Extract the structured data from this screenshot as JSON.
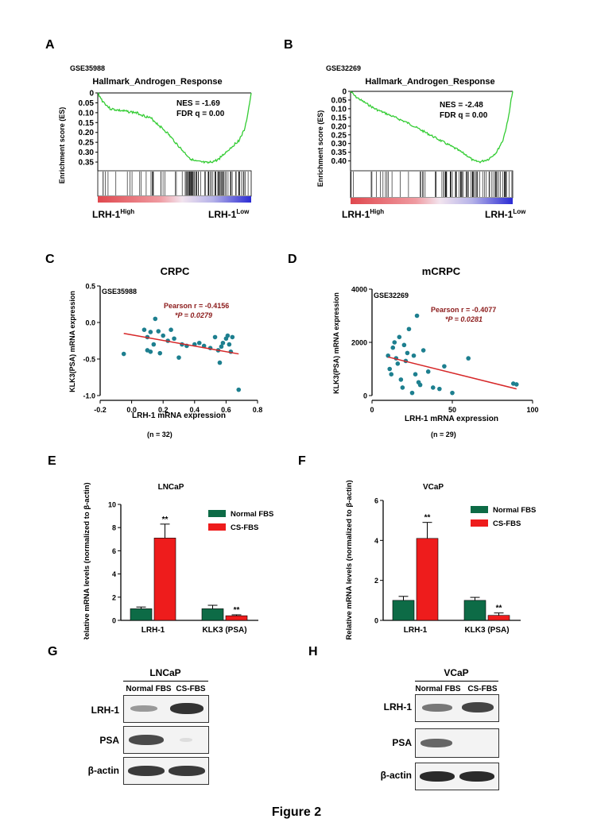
{
  "figure": {
    "title": "Figure 2"
  },
  "panels": {
    "A": {
      "label": "A",
      "dataset": "GSE35988",
      "title": "Hallmark_Androgen_Response",
      "ylabel": "Enrichment score (ES)",
      "nes": "NES = -1.69",
      "fdr": "FDR q = 0.00",
      "yticks": [
        "0",
        "0.05",
        "0.10",
        "0.15",
        "0.20",
        "0.25",
        "0.30",
        "0.35"
      ],
      "left_label": "LRH-1",
      "left_sup": "High",
      "right_label": "LRH-1",
      "right_sup": "Low"
    },
    "B": {
      "label": "B",
      "dataset": "GSE32269",
      "title": "Hallmark_Androgen_Response",
      "ylabel": "Enrichment score (ES)",
      "nes": "NES = -2.48",
      "fdr": "FDR q = 0.00",
      "yticks": [
        "0",
        "0.05",
        "0.10",
        "0.15",
        "0.20",
        "0.25",
        "0.30",
        "0.35",
        "0.40"
      ],
      "left_label": "LRH-1",
      "left_sup": "High",
      "right_label": "LRH-1",
      "right_sup": "Low"
    },
    "C": {
      "label": "C",
      "n": "(n = 32)"
    },
    "D": {
      "label": "D",
      "n": "(n = 29)"
    },
    "E": {
      "label": "E"
    },
    "F": {
      "label": "F"
    },
    "G": {
      "label": "G",
      "cell": "LNCaP",
      "cols": [
        "Normal FBS",
        "CS-FBS"
      ],
      "rows": [
        "LRH-1",
        "PSA",
        "β-actin"
      ]
    },
    "H": {
      "label": "H",
      "cell": "VCaP",
      "cols": [
        "Normal FBS",
        "CS-FBS"
      ],
      "rows": [
        "LRH-1",
        "PSA",
        "β-actin"
      ]
    }
  },
  "chart_data": [
    {
      "panel": "A",
      "type": "line",
      "xlabel": "",
      "ylabel": "Enrichment score (ES)",
      "ylim": [
        0,
        0.37
      ],
      "y_inverted": true,
      "x": [
        0,
        0.03,
        0.08,
        0.15,
        0.25,
        0.35,
        0.45,
        0.55,
        0.6,
        0.63,
        0.67,
        0.72,
        0.78,
        0.85,
        0.92,
        0.96,
        0.99,
        1.0
      ],
      "values": [
        0,
        0.04,
        0.08,
        0.09,
        0.1,
        0.13,
        0.2,
        0.29,
        0.33,
        0.345,
        0.35,
        0.355,
        0.34,
        0.29,
        0.24,
        0.18,
        0.05,
        0
      ]
    },
    {
      "panel": "B",
      "type": "line",
      "xlabel": "",
      "ylabel": "Enrichment score (ES)",
      "ylim": [
        0,
        0.42
      ],
      "y_inverted": true,
      "x": [
        0,
        0.03,
        0.08,
        0.15,
        0.25,
        0.35,
        0.45,
        0.55,
        0.65,
        0.72,
        0.76,
        0.8,
        0.85,
        0.9,
        0.94,
        0.97,
        0.99,
        1.0
      ],
      "values": [
        0,
        0.03,
        0.06,
        0.1,
        0.14,
        0.18,
        0.23,
        0.28,
        0.33,
        0.37,
        0.4,
        0.405,
        0.39,
        0.35,
        0.28,
        0.17,
        0.05,
        0
      ]
    },
    {
      "panel": "C",
      "type": "scatter",
      "title": "CRPC",
      "dataset": "GSE35988",
      "xlabel": "LRH-1 mRNA expression",
      "ylabel": "KLK3(PSA) mRNA expression",
      "xlim": [
        -0.2,
        0.8
      ],
      "ylim": [
        -1.0,
        0.5
      ],
      "xticks": [
        "-0.2",
        "0.0",
        "0.2",
        "0.4",
        "0.6",
        "0.8"
      ],
      "yticks": [
        "0.5",
        "0.0",
        "-0.5",
        "-1.0"
      ],
      "annotation": [
        "Pearson r = -0.4156",
        "*P = 0.0279"
      ],
      "x": [
        -0.05,
        0.08,
        0.1,
        0.12,
        0.14,
        0.15,
        0.17,
        0.2,
        0.23,
        0.27,
        0.3,
        0.32,
        0.35,
        0.4,
        0.43,
        0.46,
        0.5,
        0.53,
        0.55,
        0.57,
        0.58,
        0.6,
        0.61,
        0.62,
        0.63,
        0.64,
        0.56,
        0.68,
        0.12,
        0.18,
        0.25,
        0.1
      ],
      "y": [
        -0.43,
        -0.1,
        -0.2,
        -0.13,
        -0.3,
        0.05,
        -0.12,
        -0.18,
        -0.25,
        -0.22,
        -0.48,
        -0.3,
        -0.32,
        -0.3,
        -0.28,
        -0.32,
        -0.35,
        -0.2,
        -0.38,
        -0.33,
        -0.28,
        -0.22,
        -0.18,
        -0.3,
        -0.4,
        -0.2,
        -0.55,
        -0.92,
        -0.4,
        -0.42,
        -0.1,
        -0.38
      ],
      "fit": {
        "x": [
          -0.05,
          0.68
        ],
        "y": [
          -0.15,
          -0.43
        ]
      }
    },
    {
      "panel": "D",
      "type": "scatter",
      "title": "mCRPC",
      "dataset": "GSE32269",
      "xlabel": "LRH-1 mRNA expression",
      "ylabel": "KLK3(PSA) mRNA expression",
      "xlim": [
        0,
        100
      ],
      "ylim": [
        0,
        4000
      ],
      "xticks": [
        "0",
        "50",
        "100"
      ],
      "yticks": [
        "4000",
        "2000",
        "0"
      ],
      "annotation": [
        "Pearson r = -0.4077",
        "*P = 0.0281"
      ],
      "x": [
        10,
        11,
        12,
        13,
        14,
        15,
        16,
        17,
        18,
        19,
        20,
        21,
        22,
        23,
        25,
        26,
        27,
        28,
        29,
        30,
        32,
        35,
        38,
        42,
        45,
        50,
        60,
        88,
        90
      ],
      "y": [
        1500,
        1000,
        800,
        1800,
        2000,
        1400,
        1200,
        2200,
        600,
        300,
        1900,
        1300,
        1600,
        2500,
        100,
        1500,
        800,
        3000,
        500,
        400,
        1700,
        900,
        300,
        250,
        1100,
        100,
        1400,
        450,
        420
      ],
      "fit": {
        "x": [
          10,
          90
        ],
        "y": [
          1450,
          250
        ]
      }
    },
    {
      "panel": "E",
      "type": "bar",
      "title": "LNCaP",
      "ylabel": "Relative mRNA levels (normalized to β-actin)",
      "categories": [
        "LRH-1",
        "KLK3 (PSA)"
      ],
      "ylim": [
        0,
        10
      ],
      "yticks": [
        "0",
        "2",
        "4",
        "6",
        "8",
        "10"
      ],
      "series": [
        {
          "name": "Normal FBS",
          "color": "#0d6b46",
          "values": [
            1.0,
            1.0
          ],
          "errors": [
            0.15,
            0.3
          ]
        },
        {
          "name": "CS-FBS",
          "color": "#ee1c1c",
          "values": [
            7.1,
            0.4
          ],
          "errors": [
            1.2,
            0.08
          ]
        }
      ],
      "significance": [
        "**",
        "**"
      ]
    },
    {
      "panel": "F",
      "type": "bar",
      "title": "VCaP",
      "ylabel": "Relative mRNA levels (normalized to β-actin)",
      "categories": [
        "LRH-1",
        "KLK3 (PSA)"
      ],
      "ylim": [
        0,
        6
      ],
      "yticks": [
        "0",
        "2",
        "4",
        "6"
      ],
      "series": [
        {
          "name": "Normal FBS",
          "color": "#0d6b46",
          "values": [
            1.0,
            1.0
          ],
          "errors": [
            0.2,
            0.15
          ]
        },
        {
          "name": "CS-FBS",
          "color": "#ee1c1c",
          "values": [
            4.1,
            0.25
          ],
          "errors": [
            0.8,
            0.12
          ]
        }
      ],
      "significance": [
        "**",
        "**"
      ]
    }
  ]
}
